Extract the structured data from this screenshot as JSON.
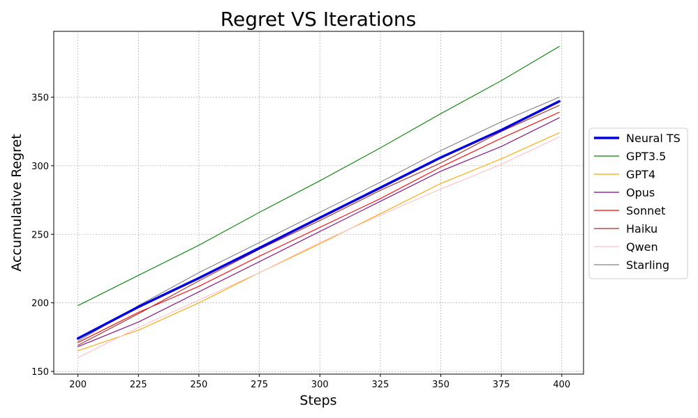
{
  "chart_data": {
    "type": "line",
    "title": "Regret VS Iterations",
    "xlabel": "Steps",
    "ylabel": "Accumulative Regret",
    "xlim": [
      190,
      409
    ],
    "ylim": [
      148,
      398
    ],
    "xticks": [
      200,
      225,
      250,
      275,
      300,
      325,
      350,
      375,
      400
    ],
    "yticks": [
      150,
      200,
      250,
      300,
      350
    ],
    "grid": true,
    "legend_position": "center-right-outside",
    "x": [
      200,
      225,
      250,
      275,
      300,
      325,
      350,
      375,
      399
    ],
    "series": [
      {
        "name": "Neural TS",
        "color": "#0000dd",
        "values": [
          174,
          197,
          218,
          240,
          262,
          284,
          306,
          326,
          347
        ]
      },
      {
        "name": "GPT3.5",
        "color": "#008000",
        "values": [
          198,
          220,
          242,
          266,
          289,
          313,
          338,
          362,
          387
        ]
      },
      {
        "name": "GPT4",
        "color": "#ffa500",
        "values": [
          165,
          180,
          200,
          222,
          243,
          265,
          287,
          305,
          324
        ]
      },
      {
        "name": "Opus",
        "color": "#800080",
        "values": [
          168,
          186,
          208,
          230,
          252,
          274,
          296,
          314,
          335
        ]
      },
      {
        "name": "Sonnet",
        "color": "#ff0000",
        "values": [
          171,
          193,
          212,
          234,
          255,
          276,
          299,
          320,
          339
        ]
      },
      {
        "name": "Haiku",
        "color": "#a52a2a",
        "values": [
          169,
          192,
          216,
          239,
          260,
          282,
          302,
          325,
          344
        ]
      },
      {
        "name": "Qwen",
        "color": "#ffc0cb",
        "values": [
          160,
          182,
          202,
          222,
          244,
          264,
          283,
          301,
          321
        ]
      },
      {
        "name": "Starling",
        "color": "#808080",
        "values": [
          172,
          198,
          222,
          244,
          266,
          288,
          311,
          332,
          350
        ]
      }
    ]
  }
}
